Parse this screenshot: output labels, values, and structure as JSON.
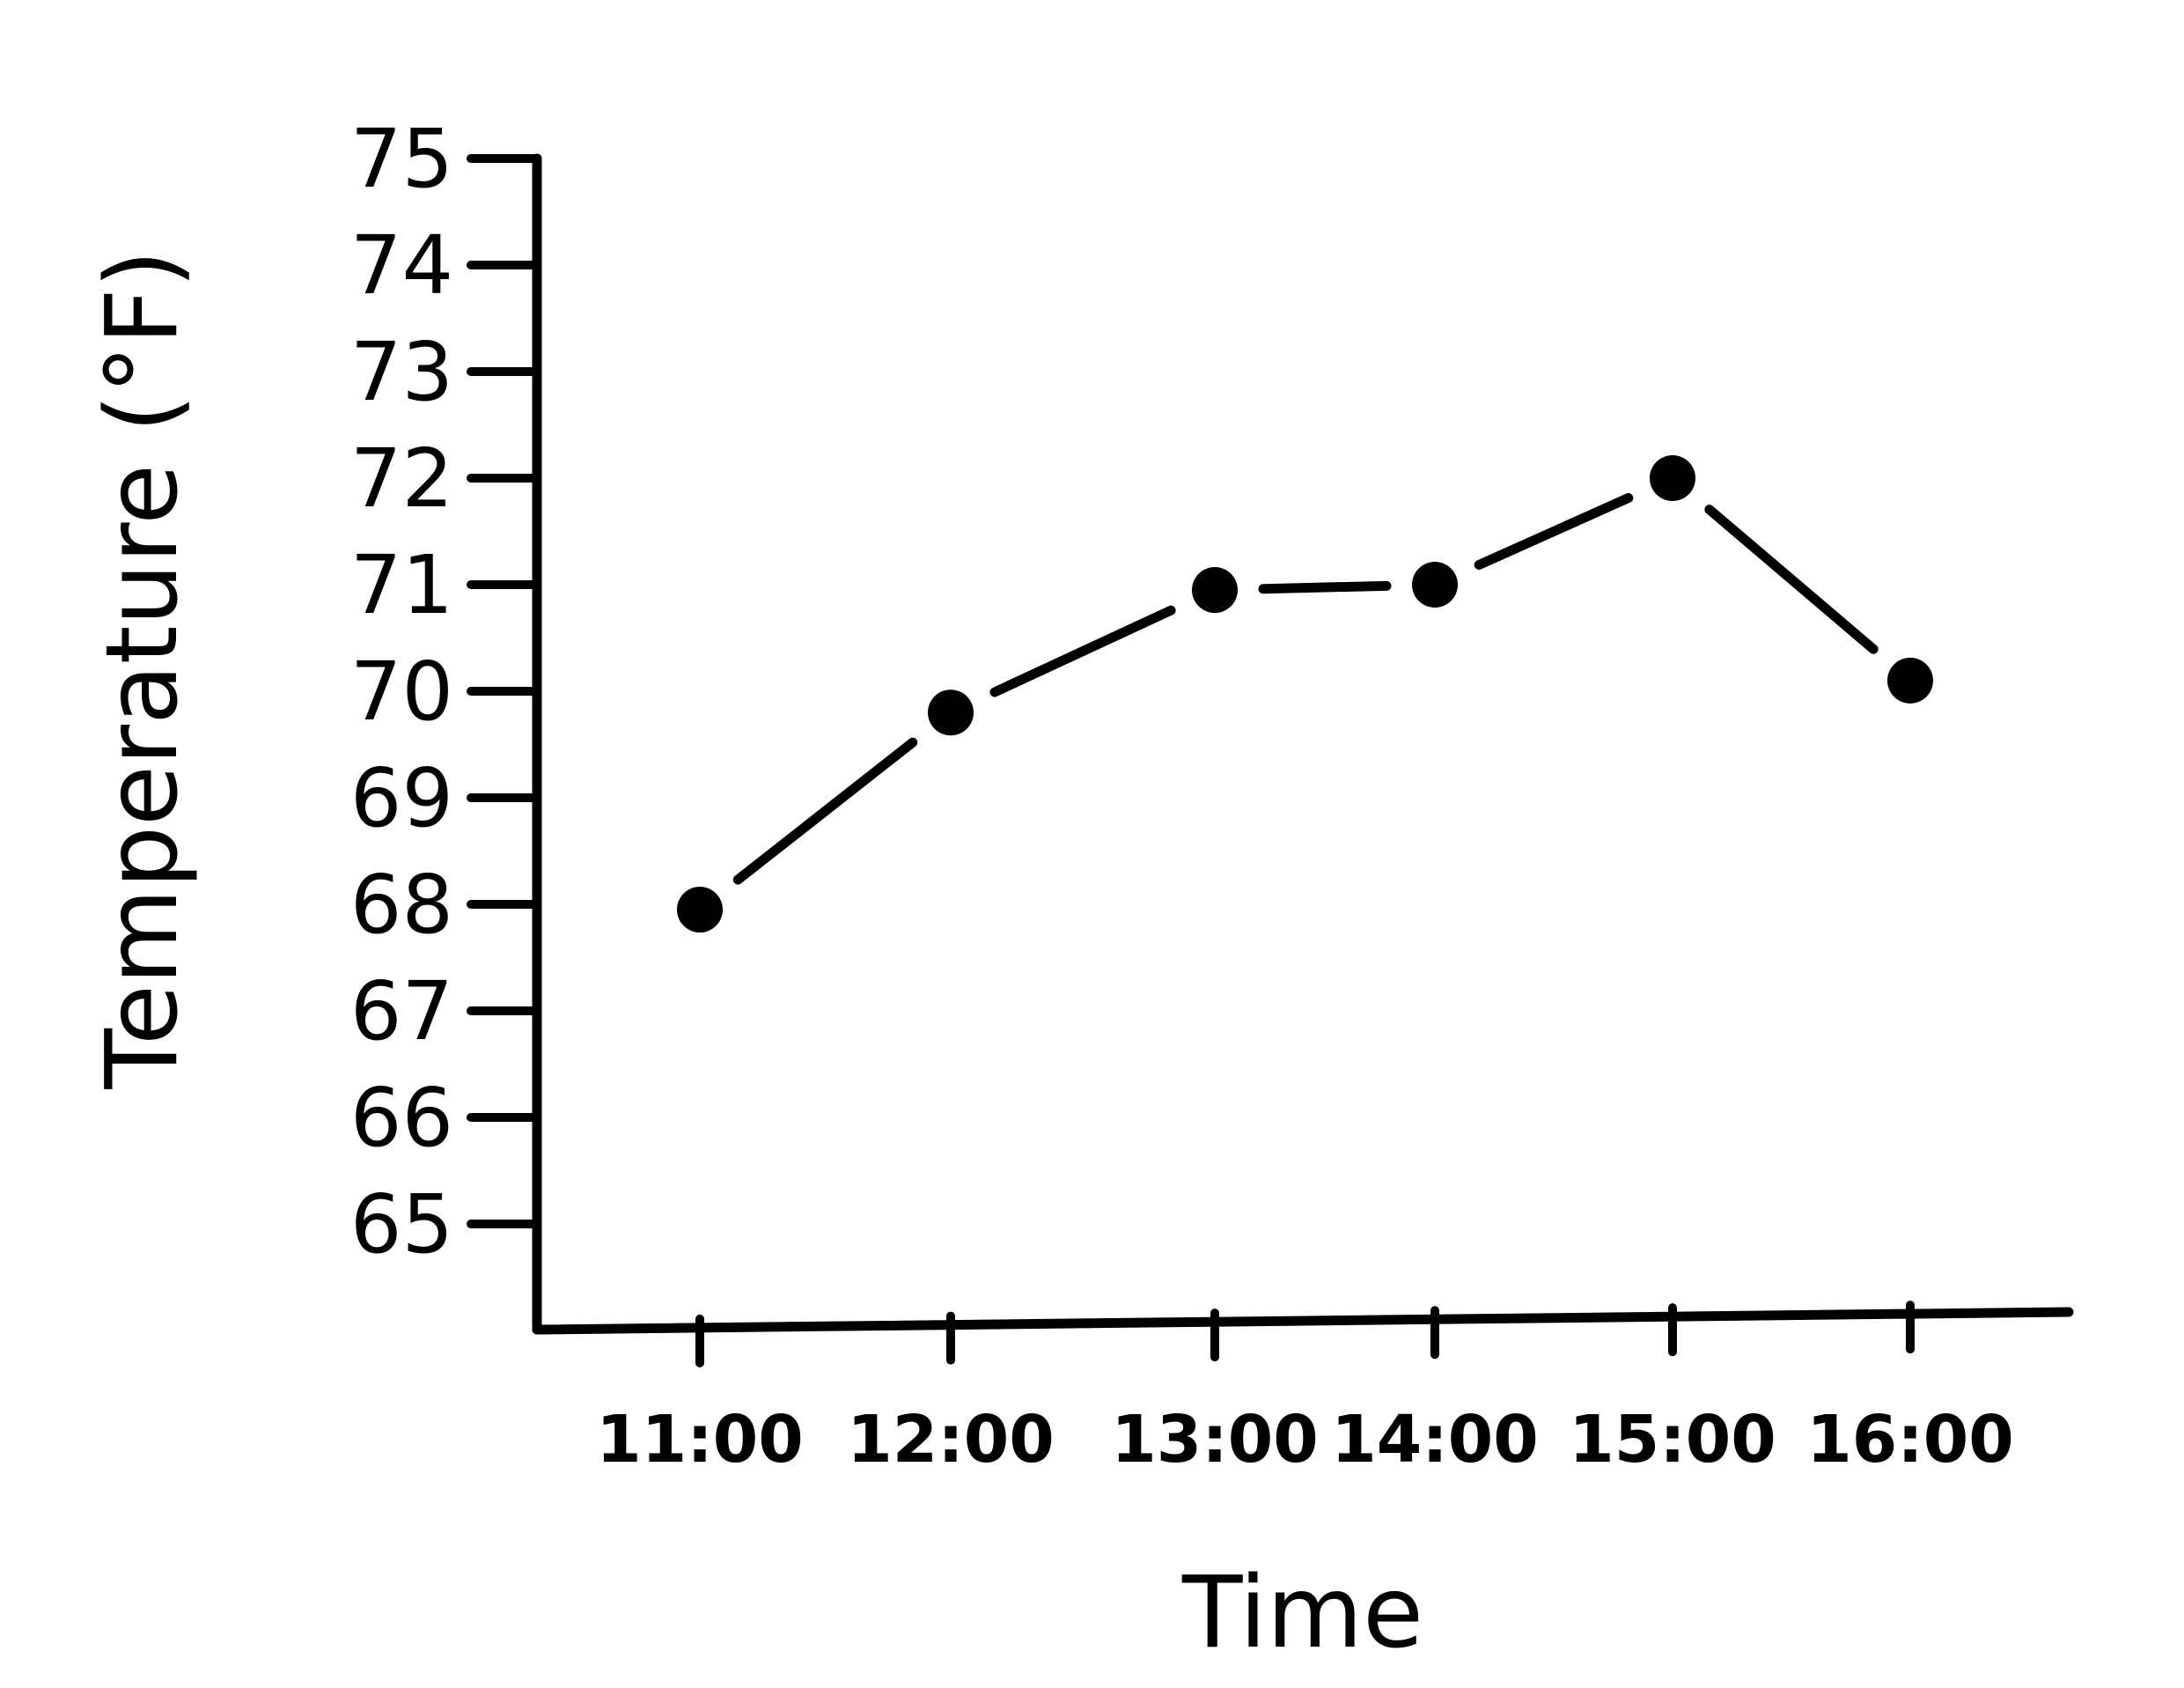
{
  "chart_data": {
    "type": "line",
    "title": "",
    "xlabel": "Time",
    "ylabel": "Temperature (°F)",
    "categories": [
      "11:00",
      "12:00",
      "13:00",
      "14:00",
      "15:00",
      "16:00"
    ],
    "series": [
      {
        "values": [
          67.95,
          69.8,
          70.95,
          71.0,
          72.0,
          70.1
        ]
      }
    ],
    "y_ticks": [
      "65",
      "66",
      "67",
      "68",
      "69",
      "70",
      "71",
      "72",
      "73",
      "74",
      "75"
    ],
    "ylim": [
      65,
      75
    ],
    "grid": false,
    "legend": "none",
    "line_color": "#000000",
    "marker": "filled-circle"
  }
}
